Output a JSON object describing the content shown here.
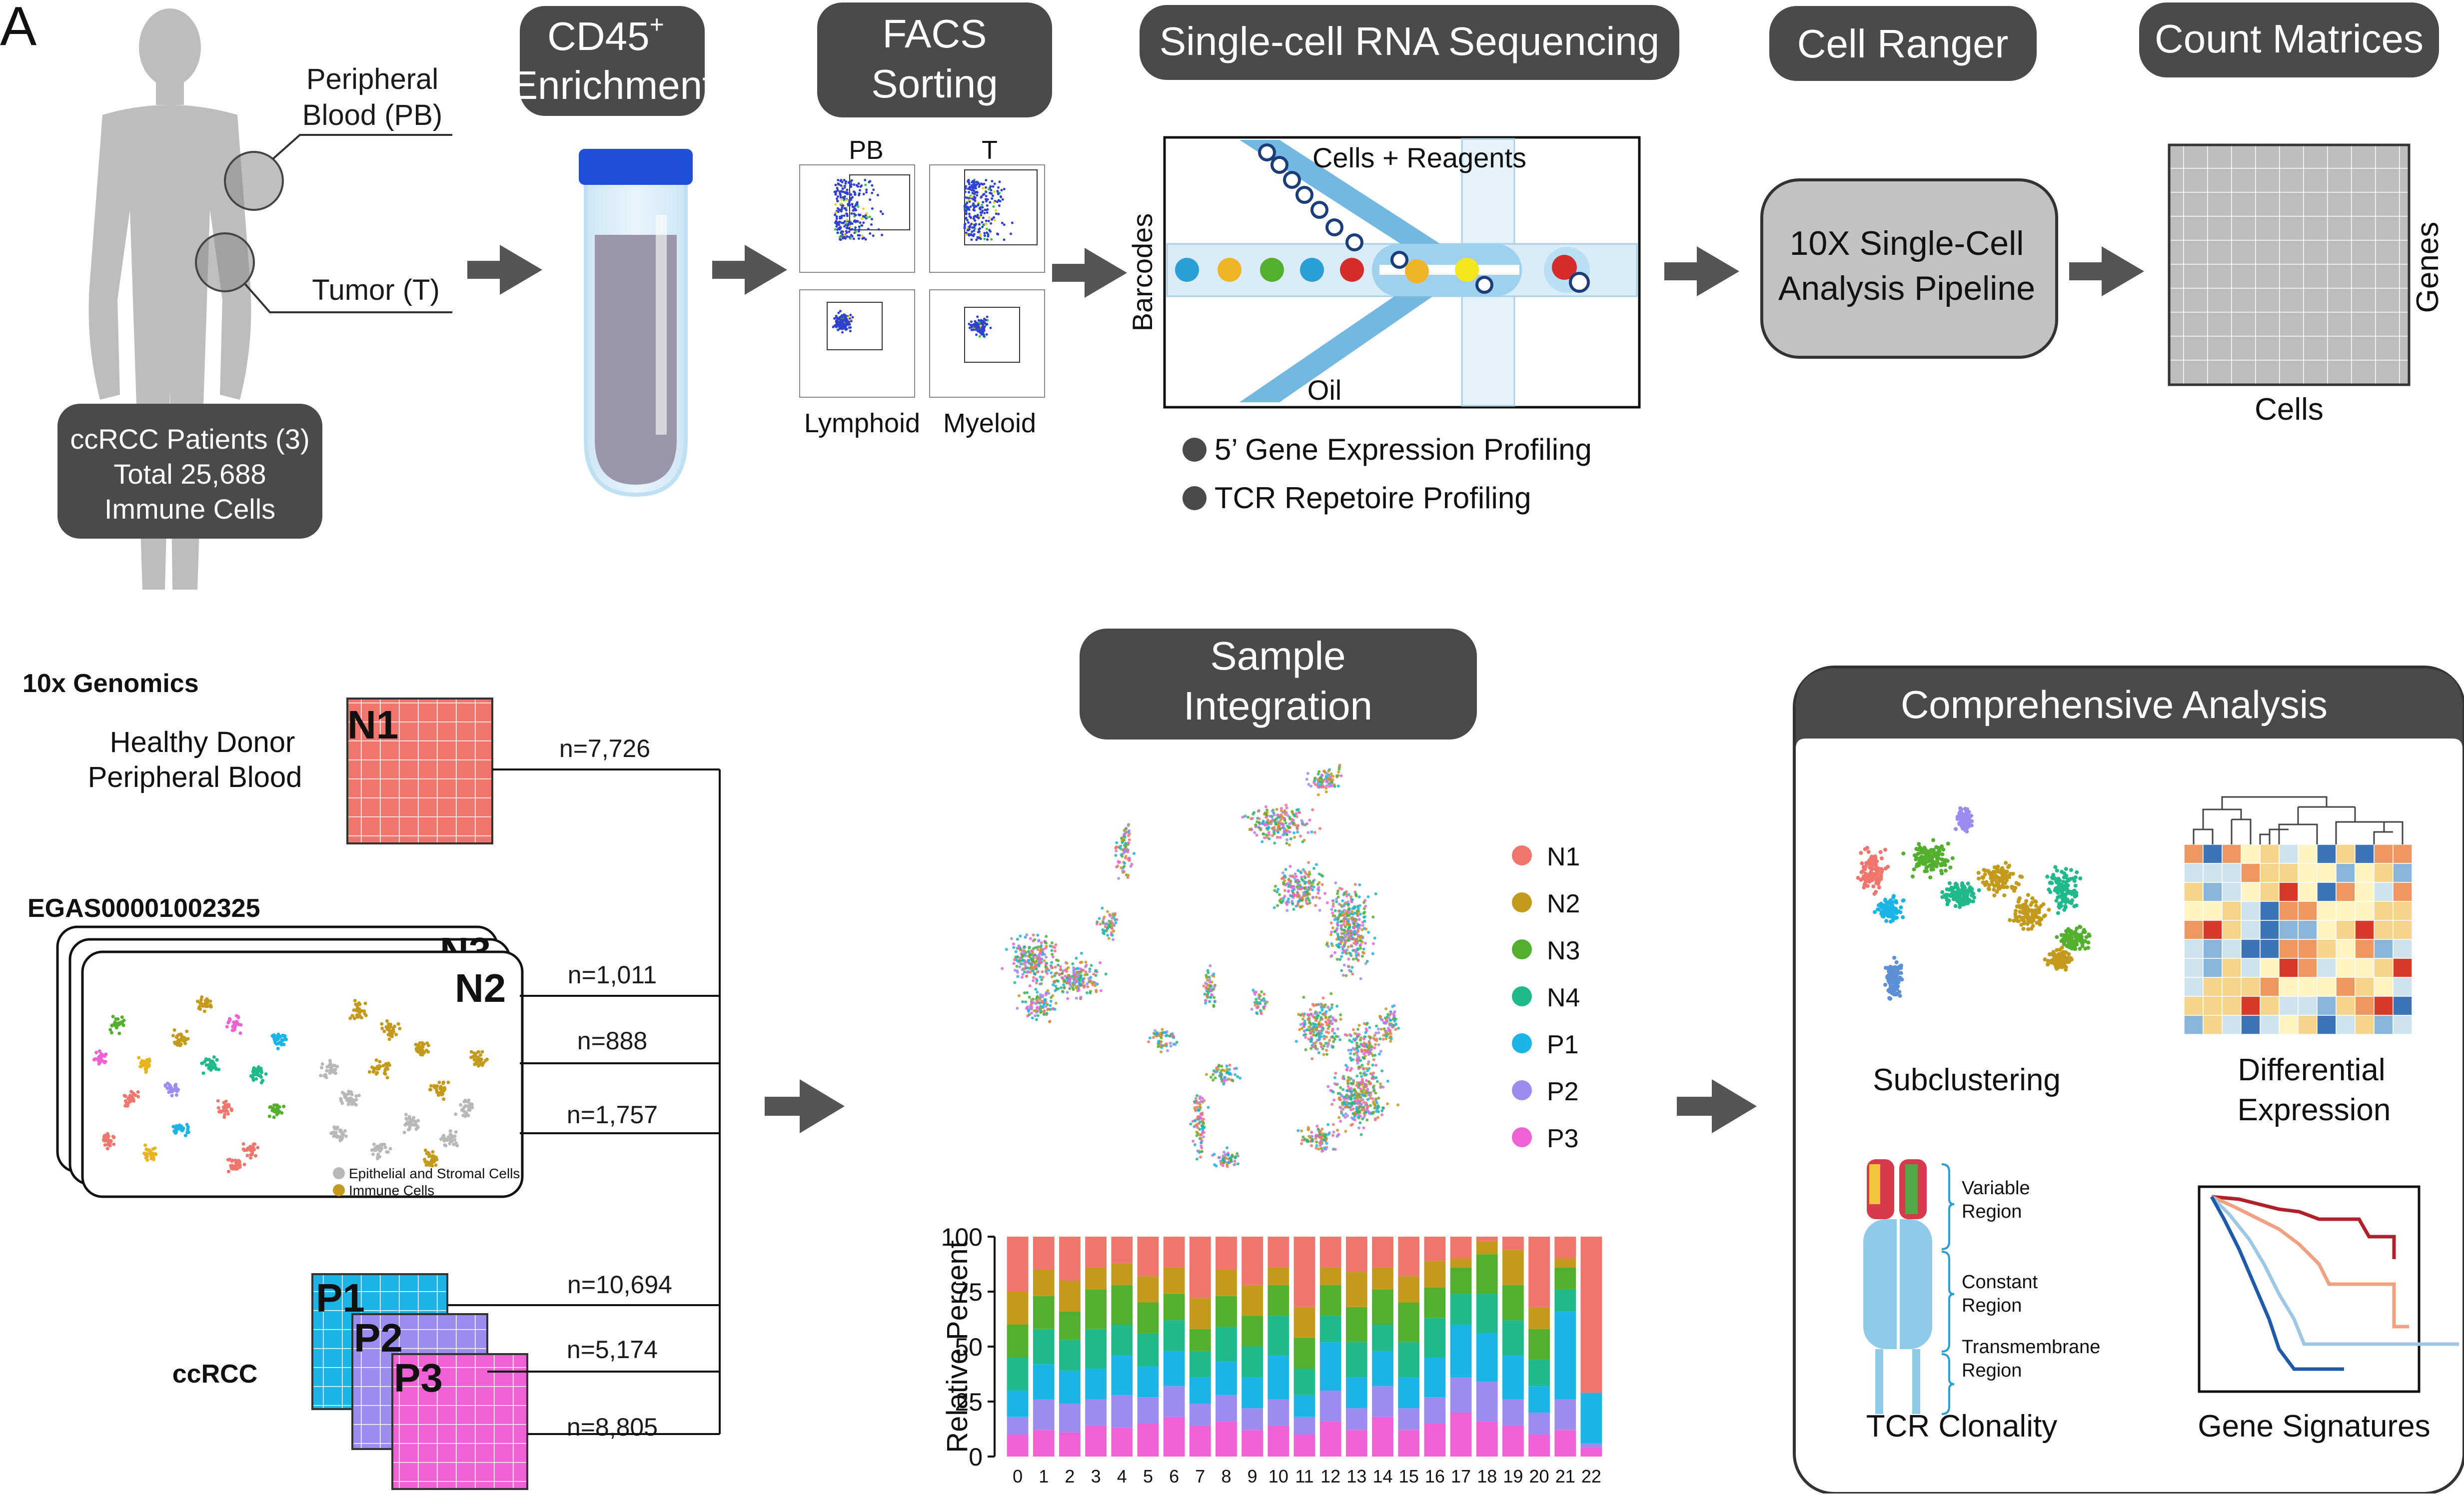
{
  "panel_label": "A",
  "colors": {
    "pill": "#4a4a4a",
    "arrow": "#555555",
    "N1": "#f0766d",
    "N2": "#c49a1c",
    "N3": "#53b02e",
    "N4": "#1fb98b",
    "P1": "#1bb4e6",
    "P2": "#9c8cf0",
    "P3": "#f061d6",
    "channel": "#73b8e0",
    "tube_liquid": "#9b95a8",
    "tube_cap": "#1f4fd6"
  },
  "top": {
    "patient": {
      "pb_label": [
        "Peripheral",
        "Blood (PB)"
      ],
      "tumor_label": "Tumor (T)",
      "box": [
        "ccRCC Patients (3)",
        "Total 25,688",
        "Immune Cells"
      ]
    },
    "steps": {
      "cd45": [
        "CD45",
        "+",
        "Enrichment"
      ],
      "facs": [
        "FACS",
        "Sorting"
      ],
      "scrna": "Single-cell RNA Sequencing",
      "cellranger": "Cell Ranger",
      "matrices": "Count Matrices"
    },
    "facs_plots": {
      "col_pb": "PB",
      "col_t": "T",
      "row_lymphoid": "Lymphoid",
      "row_myeloid": "Myeloid"
    },
    "microfluidics": {
      "cells_reagents": "Cells + Reagents",
      "oil": "Oil",
      "barcodes": "Barcodes",
      "bullet1": "5’ Gene Expression Profiling",
      "bullet2": "TCR Repetoire Profiling"
    },
    "pipeline": [
      "10X Single-Cell",
      "Analysis Pipeline"
    ],
    "matrix": {
      "xlabel": "Cells",
      "ylabel": "Genes"
    }
  },
  "bottom": {
    "source1": {
      "title": "10x Genomics",
      "desc": [
        "Healthy Donor",
        "Peripheral Blood"
      ],
      "tile": "N1",
      "n": "n=7,726"
    },
    "source2": {
      "title": "EGAS00001002325",
      "tile_back": "N3",
      "tile": "N2",
      "n": [
        "n=1,011",
        "n=888",
        "n=1,757"
      ],
      "legend": [
        "Epithelial and Stromal Cells",
        "Immune Cells"
      ]
    },
    "source3": {
      "title": "ccRCC",
      "tiles": [
        "P1",
        "P2",
        "P3"
      ],
      "n": [
        "n=10,694",
        "n=5,174",
        "n=8,805"
      ]
    },
    "integration": [
      "Sample",
      "Integration"
    ],
    "umap_legend": [
      "N1",
      "N2",
      "N3",
      "N4",
      "P1",
      "P2",
      "P3"
    ],
    "analysis": {
      "title": "Comprehensive Analysis",
      "subclustering": "Subclustering",
      "diffexp": [
        "Differential",
        "Expression"
      ],
      "tcr": "TCR Clonality",
      "tcr_regions": [
        [
          "Variable",
          "Region"
        ],
        [
          "Constant",
          "Region"
        ],
        [
          "Transmembrane",
          "Region"
        ]
      ],
      "genesig": "Gene Signatures"
    }
  },
  "chart_data": {
    "type": "bar",
    "stacked": true,
    "ylabel": "Relative Percent",
    "ylim": [
      0,
      100
    ],
    "yticks": [
      "0",
      "25",
      "50",
      "75",
      "100"
    ],
    "categories": [
      "0",
      "1",
      "2",
      "3",
      "4",
      "5",
      "6",
      "7",
      "8",
      "9",
      "10",
      "11",
      "12",
      "13",
      "14",
      "15",
      "16",
      "17",
      "18",
      "19",
      "20",
      "21",
      "22"
    ],
    "series": [
      {
        "name": "P3",
        "values": [
          10,
          12,
          11,
          14,
          13,
          15,
          18,
          14,
          16,
          12,
          14,
          10,
          16,
          12,
          18,
          12,
          15,
          20,
          16,
          14,
          10,
          12,
          4
        ]
      },
      {
        "name": "P2",
        "values": [
          8,
          14,
          13,
          12,
          15,
          12,
          14,
          10,
          12,
          10,
          12,
          8,
          14,
          10,
          14,
          10,
          12,
          16,
          18,
          12,
          10,
          14,
          2
        ]
      },
      {
        "name": "P1",
        "values": [
          12,
          16,
          15,
          14,
          18,
          14,
          16,
          12,
          15,
          14,
          20,
          10,
          22,
          14,
          16,
          14,
          18,
          24,
          22,
          20,
          12,
          40,
          23
        ]
      },
      {
        "name": "N4",
        "values": [
          15,
          16,
          14,
          18,
          14,
          15,
          14,
          12,
          16,
          14,
          18,
          12,
          12,
          16,
          12,
          16,
          18,
          14,
          18,
          16,
          12,
          10,
          0
        ]
      },
      {
        "name": "N3",
        "values": [
          15,
          15,
          13,
          18,
          18,
          14,
          12,
          10,
          14,
          14,
          14,
          14,
          14,
          16,
          16,
          18,
          14,
          12,
          18,
          16,
          14,
          10,
          0
        ]
      },
      {
        "name": "N2",
        "values": [
          15,
          12,
          14,
          10,
          10,
          12,
          12,
          14,
          12,
          14,
          8,
          14,
          8,
          16,
          10,
          12,
          12,
          4,
          6,
          16,
          10,
          4,
          0
        ]
      },
      {
        "name": "N1",
        "values": [
          25,
          15,
          20,
          14,
          12,
          18,
          14,
          28,
          15,
          22,
          14,
          32,
          14,
          16,
          14,
          18,
          11,
          10,
          2,
          6,
          32,
          10,
          71
        ]
      }
    ]
  }
}
